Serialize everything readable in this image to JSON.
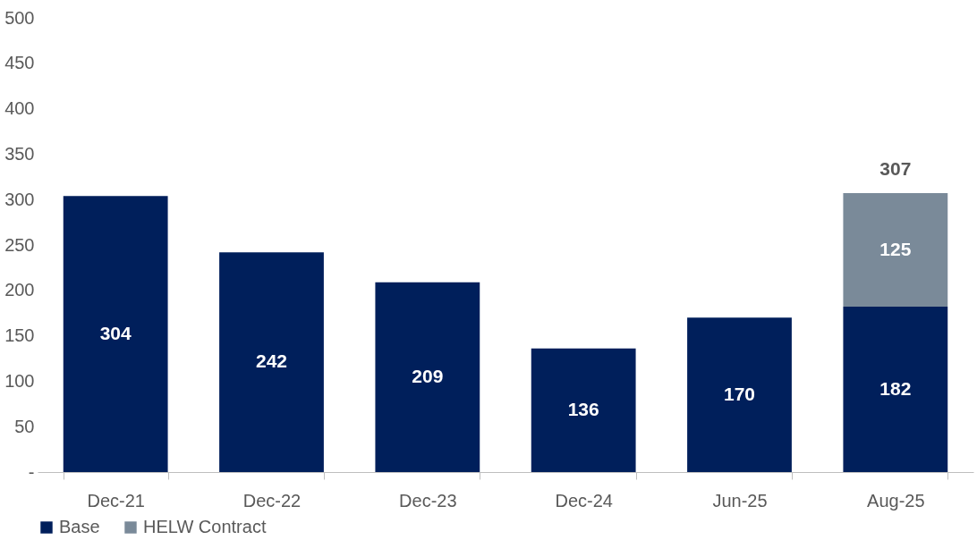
{
  "chart_data": {
    "type": "bar",
    "stacked": true,
    "categories": [
      "Dec-21",
      "Dec-22",
      "Dec-23",
      "Dec-24",
      "Jun-25",
      "Aug-25"
    ],
    "series": [
      {
        "name": "Base",
        "color": "#001f5b",
        "values": [
          304,
          242,
          209,
          136,
          170,
          182
        ]
      },
      {
        "name": "HELW Contract",
        "color": "#7a8a99",
        "values": [
          null,
          null,
          null,
          null,
          null,
          125
        ]
      }
    ],
    "ylim": [
      0,
      500
    ],
    "yticks": [
      {
        "value": 0,
        "label": "-"
      },
      50,
      100,
      150,
      200,
      250,
      300,
      350,
      400,
      450,
      500
    ],
    "data_labels": true,
    "totals": [
      null,
      null,
      null,
      null,
      null,
      "307"
    ],
    "legend": "bottom",
    "grid": false
  }
}
